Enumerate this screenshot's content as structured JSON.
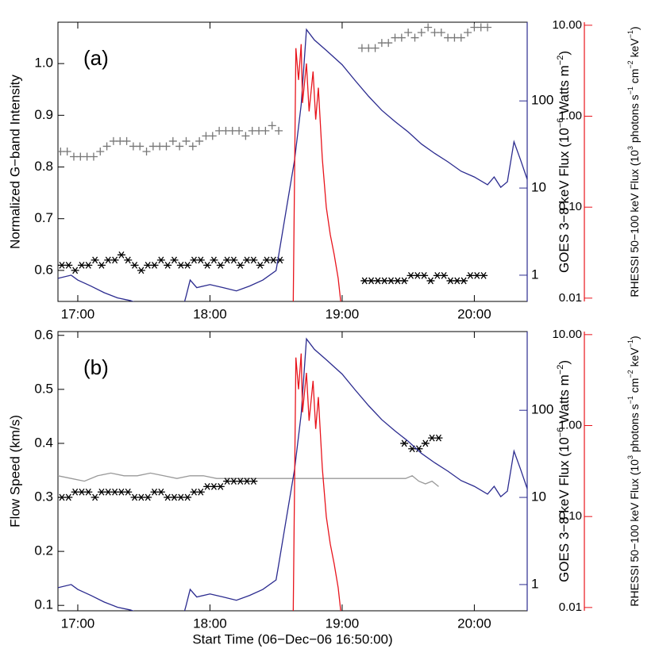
{
  "chart_data": [
    {
      "type": "line",
      "panel_label": "(a)",
      "xlim": [
        16.85,
        20.4
      ],
      "xticks": [
        {
          "value": 17,
          "label": "17:00"
        },
        {
          "value": 18,
          "label": "18:00"
        },
        {
          "value": 19,
          "label": "19:00"
        },
        {
          "value": 20,
          "label": "20:00"
        }
      ],
      "ylabel": "Normalized G−band Intensity",
      "ylim": [
        0.54,
        1.08
      ],
      "yticks": [
        0.6,
        0.7,
        0.8,
        0.9,
        {
          "value": 1.0,
          "label": "1.0"
        }
      ],
      "y2label": [
        "GOES 3−8 keV Flux (10",
        "−6",
        " Watts m",
        "−2",
        ")"
      ],
      "y2lim": [
        0.5,
        800
      ],
      "y2log": true,
      "y2color": "#2b2b8f",
      "y2ticks": [
        1,
        10,
        100
      ],
      "y3label": [
        "RHESSI 50−100 keV Flux (10",
        "3",
        " photons s",
        "−1",
        " cm",
        "−2",
        " keV",
        "−1",
        ")"
      ],
      "y3lim": [
        0.0092,
        10.8
      ],
      "y3log": true,
      "y3color": "#e8141c",
      "y3ticks": [
        0.01,
        {
          "value": 0.1,
          "label": "0.10"
        },
        {
          "value": 1,
          "label": "1.00"
        },
        {
          "value": 10,
          "label": "10.00"
        }
      ],
      "series": [
        {
          "marker": "plus",
          "color": "#777777",
          "axis": "y",
          "x": [
            16.87,
            16.92,
            16.97,
            17.02,
            17.07,
            17.12,
            17.17,
            17.22,
            17.27,
            17.32,
            17.37,
            17.42,
            17.47,
            17.52,
            17.57,
            17.62,
            17.67,
            17.72,
            17.77,
            17.82,
            17.87,
            17.92,
            17.97,
            18.02,
            18.07,
            18.12,
            18.17,
            18.22,
            18.27,
            18.32,
            18.37,
            18.42,
            18.47,
            18.52,
            19.15,
            19.2,
            19.25,
            19.3,
            19.35,
            19.4,
            19.45,
            19.5,
            19.55,
            19.6,
            19.65,
            19.7,
            19.75,
            19.8,
            19.85,
            19.9,
            19.95,
            20.0,
            20.05,
            20.1
          ],
          "values": [
            0.83,
            0.83,
            0.82,
            0.82,
            0.82,
            0.82,
            0.83,
            0.84,
            0.85,
            0.85,
            0.85,
            0.84,
            0.84,
            0.83,
            0.84,
            0.84,
            0.84,
            0.85,
            0.84,
            0.85,
            0.84,
            0.85,
            0.86,
            0.86,
            0.87,
            0.87,
            0.87,
            0.87,
            0.86,
            0.87,
            0.87,
            0.87,
            0.88,
            0.87,
            1.03,
            1.03,
            1.03,
            1.04,
            1.04,
            1.05,
            1.05,
            1.06,
            1.05,
            1.06,
            1.07,
            1.06,
            1.06,
            1.05,
            1.05,
            1.05,
            1.06,
            1.07,
            1.07,
            1.07
          ]
        },
        {
          "marker": "asterisk",
          "color": "#000000",
          "axis": "y",
          "x": [
            16.88,
            16.93,
            16.98,
            17.03,
            17.08,
            17.13,
            17.18,
            17.23,
            17.28,
            17.33,
            17.38,
            17.43,
            17.48,
            17.53,
            17.58,
            17.63,
            17.68,
            17.73,
            17.78,
            17.83,
            17.88,
            17.93,
            17.98,
            18.03,
            18.08,
            18.13,
            18.18,
            18.23,
            18.28,
            18.33,
            18.38,
            18.43,
            18.48,
            18.53,
            19.17,
            19.22,
            19.27,
            19.32,
            19.37,
            19.42,
            19.47,
            19.52,
            19.57,
            19.62,
            19.67,
            19.72,
            19.77,
            19.82,
            19.87,
            19.92,
            19.97,
            20.02,
            20.07
          ],
          "values": [
            0.61,
            0.61,
            0.6,
            0.61,
            0.61,
            0.62,
            0.61,
            0.62,
            0.62,
            0.63,
            0.62,
            0.61,
            0.6,
            0.61,
            0.61,
            0.62,
            0.61,
            0.62,
            0.61,
            0.61,
            0.62,
            0.62,
            0.61,
            0.62,
            0.61,
            0.62,
            0.62,
            0.61,
            0.62,
            0.62,
            0.61,
            0.62,
            0.62,
            0.62,
            0.58,
            0.58,
            0.58,
            0.58,
            0.58,
            0.58,
            0.58,
            0.59,
            0.59,
            0.59,
            0.58,
            0.59,
            0.59,
            0.58,
            0.58,
            0.58,
            0.59,
            0.59,
            0.59
          ]
        },
        {
          "marker": "line",
          "color": "#2b2b8f",
          "axis": "y2",
          "x": [
            16.85,
            16.95,
            17.0,
            17.1,
            17.2,
            17.3,
            17.4,
            17.5,
            17.8,
            17.82,
            17.85,
            17.9,
            18.0,
            18.1,
            18.2,
            18.3,
            18.4,
            18.5,
            18.52,
            18.58,
            18.64,
            18.69,
            18.73,
            18.79,
            18.88,
            19.0,
            19.1,
            19.2,
            19.3,
            19.4,
            19.5,
            19.6,
            19.7,
            19.8,
            19.9,
            20.0,
            20.1,
            20.15,
            20.2,
            20.25,
            20.3,
            20.35,
            20.4
          ],
          "values": [
            0.92,
            1.0,
            0.88,
            0.75,
            0.63,
            0.55,
            0.51,
            0.45,
            0.45,
            0.58,
            0.88,
            0.72,
            0.78,
            0.72,
            0.66,
            0.75,
            0.88,
            1.13,
            1.7,
            6,
            21,
            90,
            660,
            500,
            380,
            260,
            170,
            113,
            78,
            58,
            44,
            32,
            25,
            20,
            15.6,
            13.4,
            10.9,
            13.4,
            10.2,
            11.8,
            34,
            21,
            12.6
          ]
        },
        {
          "marker": "line",
          "color": "#e8141c",
          "axis": "y3",
          "x": [
            18.63,
            18.65,
            18.67,
            18.69,
            18.7,
            18.73,
            18.75,
            18.78,
            18.8,
            18.82,
            18.85,
            18.88,
            18.91,
            18.94,
            18.97,
            18.99
          ],
          "values": [
            0.009,
            5.6,
            2.5,
            6.2,
            1.4,
            3.8,
            1.13,
            3.1,
            0.92,
            2.06,
            0.34,
            0.1,
            0.05,
            0.03,
            0.0165,
            0.009
          ]
        }
      ]
    },
    {
      "type": "line",
      "panel_label": "(b)",
      "xlim": [
        16.85,
        20.4
      ],
      "xticks": [
        {
          "value": 17,
          "label": "17:00"
        },
        {
          "value": 18,
          "label": "18:00"
        },
        {
          "value": 19,
          "label": "19:00"
        },
        {
          "value": 20,
          "label": "20:00"
        }
      ],
      "xlabel": "Start Time (06−Dec−06 16:50:00)",
      "ylabel": "Flow Speed (km/s)",
      "ylim": [
        0.09,
        0.607
      ],
      "yticks": [
        0.1,
        0.2,
        0.3,
        0.4,
        0.5,
        0.6
      ],
      "y2label": [
        "GOES 3−8 keV Flux (10",
        "−6",
        " Watts m",
        "−2",
        ")"
      ],
      "y2lim": [
        0.5,
        800
      ],
      "y2log": true,
      "y2color": "#2b2b8f",
      "y2ticks": [
        1,
        10,
        100
      ],
      "y3label": [
        "RHESSI 50−100 keV Flux (10",
        "3",
        " photons s",
        "−1",
        " cm",
        "−2",
        " keV",
        "−1",
        ")"
      ],
      "y3lim": [
        0.0092,
        10.8
      ],
      "y3log": true,
      "y3color": "#e8141c",
      "y3ticks": [
        0.01,
        {
          "value": 0.1,
          "label": "0.10"
        },
        {
          "value": 1,
          "label": "1.00"
        },
        {
          "value": 10,
          "label": "10.00"
        }
      ],
      "series": [
        {
          "marker": "line",
          "color": "#999999",
          "axis": "y",
          "x": [
            16.85,
            16.95,
            17.05,
            17.15,
            17.25,
            17.35,
            17.45,
            17.55,
            17.65,
            17.75,
            17.85,
            17.95,
            18.05,
            18.15,
            18.25,
            18.35,
            18.4,
            19.48,
            19.53,
            19.58,
            19.63,
            19.68,
            19.73
          ],
          "values": [
            0.34,
            0.335,
            0.33,
            0.34,
            0.345,
            0.34,
            0.34,
            0.345,
            0.34,
            0.335,
            0.34,
            0.34,
            0.335,
            0.335,
            0.335,
            0.335,
            0.335,
            0.335,
            0.34,
            0.33,
            0.325,
            0.33,
            0.32
          ]
        },
        {
          "marker": "asterisk",
          "color": "#000000",
          "axis": "y",
          "x": [
            16.88,
            16.93,
            16.98,
            17.03,
            17.08,
            17.13,
            17.18,
            17.23,
            17.28,
            17.33,
            17.38,
            17.43,
            17.48,
            17.53,
            17.58,
            17.63,
            17.68,
            17.73,
            17.78,
            17.83,
            17.88,
            17.93,
            17.98,
            18.03,
            18.08,
            18.13,
            18.18,
            18.23,
            18.28,
            18.33,
            19.47,
            19.53,
            19.58,
            19.63,
            19.68,
            19.73
          ],
          "values": [
            0.3,
            0.3,
            0.31,
            0.31,
            0.31,
            0.3,
            0.31,
            0.31,
            0.31,
            0.31,
            0.31,
            0.3,
            0.3,
            0.3,
            0.31,
            0.31,
            0.3,
            0.3,
            0.3,
            0.3,
            0.31,
            0.31,
            0.32,
            0.32,
            0.32,
            0.33,
            0.33,
            0.33,
            0.33,
            0.33,
            0.4,
            0.39,
            0.39,
            0.4,
            0.41,
            0.41
          ]
        },
        {
          "marker": "line",
          "color": "#2b2b8f",
          "axis": "y2",
          "x": [
            16.85,
            16.95,
            17.0,
            17.1,
            17.2,
            17.3,
            17.4,
            17.5,
            17.8,
            17.82,
            17.85,
            17.9,
            18.0,
            18.1,
            18.2,
            18.3,
            18.4,
            18.5,
            18.52,
            18.58,
            18.64,
            18.69,
            18.73,
            18.79,
            18.88,
            19.0,
            19.1,
            19.2,
            19.3,
            19.4,
            19.5,
            19.6,
            19.7,
            19.8,
            19.9,
            20.0,
            20.1,
            20.15,
            20.2,
            20.25,
            20.3,
            20.35,
            20.4
          ],
          "values": [
            0.92,
            1.0,
            0.88,
            0.75,
            0.63,
            0.55,
            0.51,
            0.45,
            0.45,
            0.58,
            0.88,
            0.72,
            0.78,
            0.72,
            0.66,
            0.75,
            0.88,
            1.13,
            1.7,
            6,
            21,
            90,
            660,
            500,
            380,
            260,
            170,
            113,
            78,
            58,
            44,
            32,
            25,
            20,
            15.6,
            13.4,
            10.9,
            13.4,
            10.2,
            11.8,
            34,
            21,
            12.6
          ]
        },
        {
          "marker": "line",
          "color": "#e8141c",
          "axis": "y3",
          "x": [
            18.63,
            18.65,
            18.67,
            18.69,
            18.7,
            18.73,
            18.75,
            18.78,
            18.8,
            18.82,
            18.85,
            18.88,
            18.91,
            18.94,
            18.97,
            18.99
          ],
          "values": [
            0.009,
            5.6,
            2.5,
            6.2,
            1.4,
            3.8,
            1.13,
            3.1,
            0.92,
            2.06,
            0.34,
            0.1,
            0.05,
            0.03,
            0.0165,
            0.009
          ]
        }
      ]
    }
  ]
}
